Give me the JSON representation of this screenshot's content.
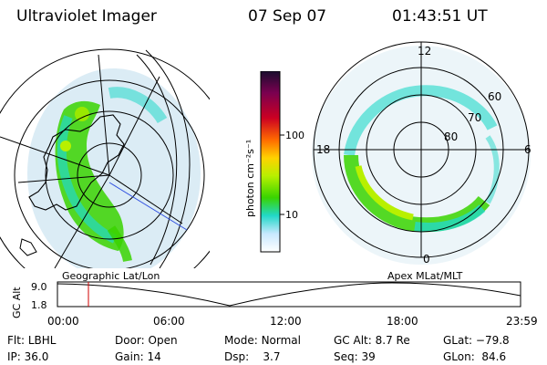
{
  "header": {
    "instrument": "Ultraviolet Imager",
    "date": "07 Sep 07",
    "time": "01:43:51 UT"
  },
  "left_panel": {
    "label": "Geographic Lat/Lon"
  },
  "right_panel": {
    "label": "Apex MLat/MLT",
    "mlt_labels": [
      "12",
      "18",
      "6",
      "0"
    ],
    "lat_labels": [
      "60",
      "70",
      "80"
    ]
  },
  "colorbar": {
    "unit_label": "photon cm⁻²s⁻¹",
    "ticks": [
      "100",
      "10"
    ],
    "scale": "log",
    "colors": [
      "#1a0d2e",
      "#7a0050",
      "#cc0022",
      "#ff6a00",
      "#ffd200",
      "#b8f000",
      "#39d400",
      "#22d8c8",
      "#c8e8ff",
      "#ffffff"
    ]
  },
  "timeline": {
    "y_label": "GC Alt",
    "y_ticks": [
      "9.0",
      "1.8"
    ],
    "x_ticks": [
      "00:00",
      "06:00",
      "12:00",
      "18:00",
      "23:59"
    ],
    "marker_color": "#d00000"
  },
  "status": {
    "filter": {
      "label": "Flt:",
      "value": "LBHL"
    },
    "door": {
      "label": "Door:",
      "value": "Open"
    },
    "mode": {
      "label": "Mode:",
      "value": "Normal"
    },
    "gc_alt": {
      "label": "GC Alt:",
      "value": "8.7 Re"
    },
    "glat": {
      "label": "GLat:",
      "value": "−79.8"
    },
    "ip": {
      "label": "IP:",
      "value": "36.0"
    },
    "gain": {
      "label": "Gain:",
      "value": "14"
    },
    "dsp": {
      "label": "Dsp:",
      "value": "3.7"
    },
    "seq": {
      "label": "Seq:",
      "value": "39"
    },
    "glon": {
      "label": "GLon:",
      "value": "84.6"
    }
  }
}
